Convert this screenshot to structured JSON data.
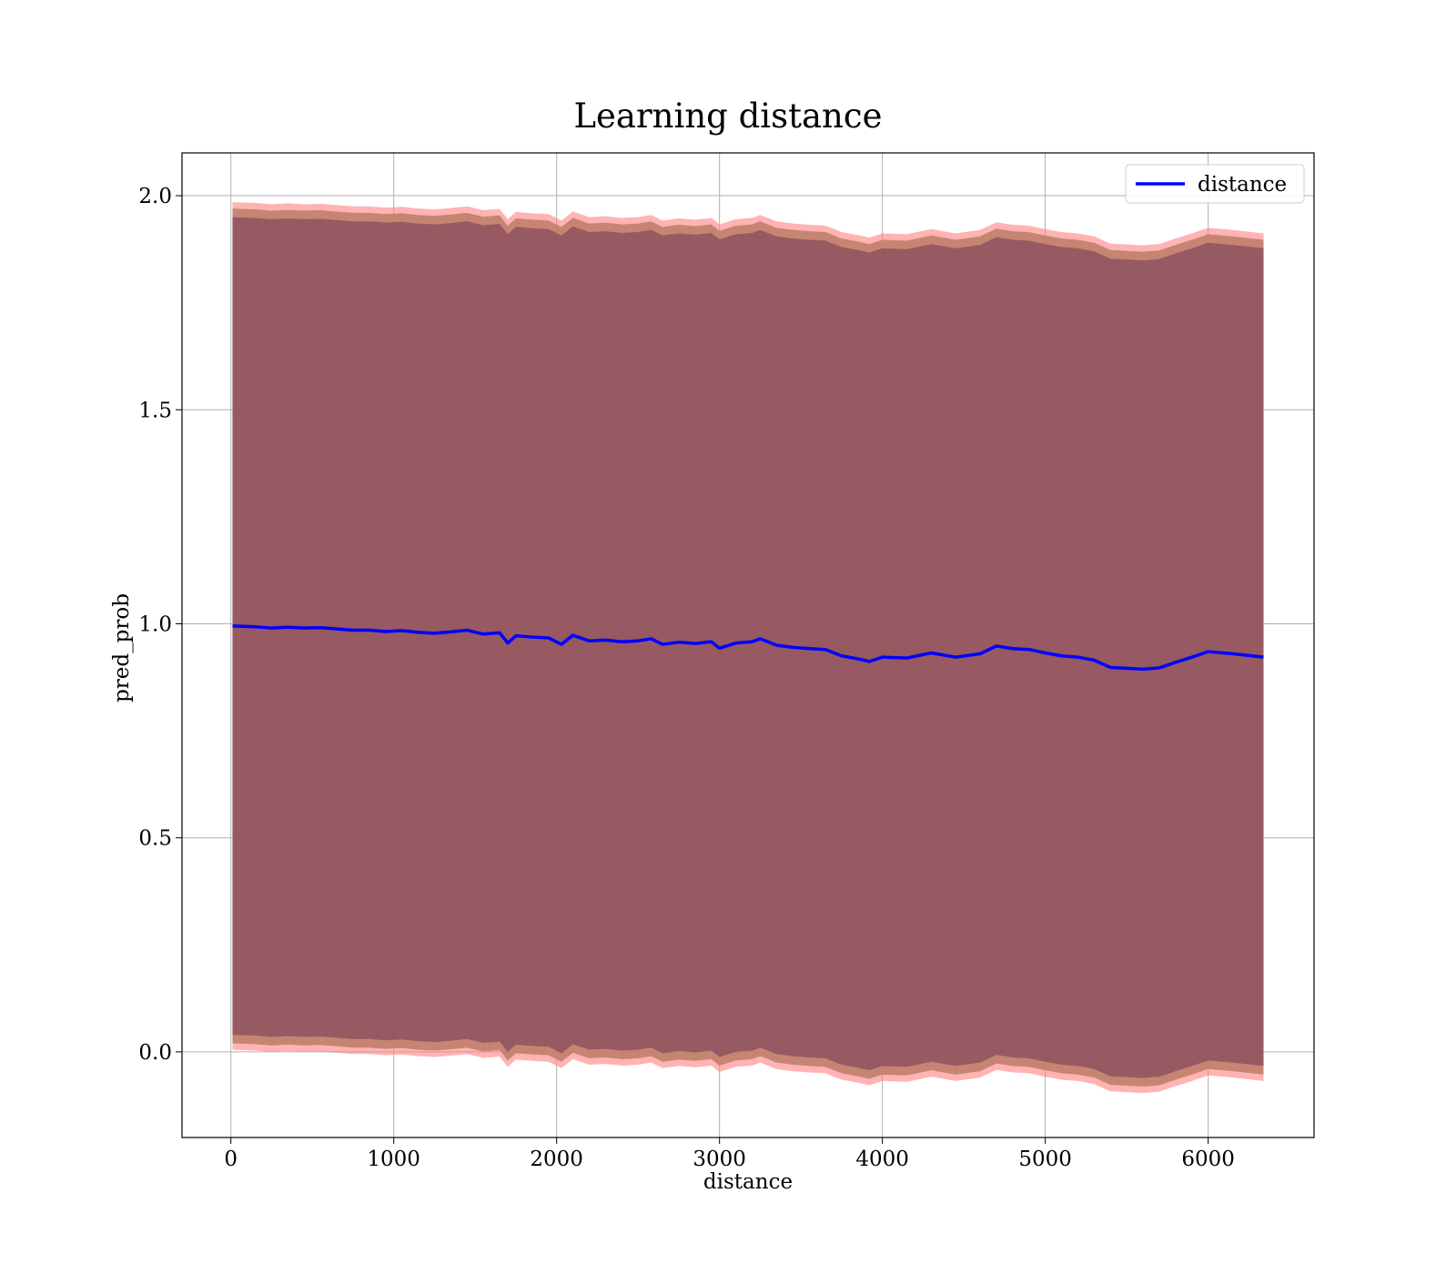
{
  "chart_data": {
    "type": "line",
    "title": "Learning distance",
    "xlabel": "distance",
    "ylabel": "pred_prob",
    "xlim": [
      -300,
      6650
    ],
    "ylim": [
      -0.2,
      2.1
    ],
    "xticks": [
      0,
      1000,
      2000,
      3000,
      4000,
      5000,
      6000
    ],
    "xtick_labels": [
      "0",
      "1000",
      "2000",
      "3000",
      "4000",
      "5000",
      "6000"
    ],
    "yticks": [
      0.0,
      0.5,
      1.0,
      1.5,
      2.0
    ],
    "ytick_labels": [
      "0.0",
      "0.5",
      "1.0",
      "1.5",
      "2.0"
    ],
    "grid": true,
    "legend": {
      "position": "top-right",
      "entries": [
        "distance"
      ]
    },
    "colors": {
      "line": "#0000ff",
      "inner_band": "#8b4d5e",
      "outer_band": "#ff8080",
      "mid_band": "#c0806a"
    },
    "series": [
      {
        "name": "distance",
        "x": [
          10,
          150,
          250,
          350,
          450,
          550,
          650,
          750,
          850,
          950,
          1050,
          1150,
          1250,
          1350,
          1450,
          1550,
          1650,
          1700,
          1750,
          1850,
          1950,
          2030,
          2100,
          2200,
          2300,
          2400,
          2500,
          2580,
          2650,
          2750,
          2850,
          2950,
          3000,
          3100,
          3200,
          3250,
          3350,
          3450,
          3550,
          3650,
          3750,
          3850,
          3920,
          4000,
          4150,
          4300,
          4450,
          4600,
          4700,
          4800,
          4900,
          5000,
          5100,
          5200,
          5300,
          5400,
          5500,
          5600,
          5700,
          5800,
          5900,
          6000,
          6150,
          6340
        ],
        "y": [
          0.995,
          0.993,
          0.99,
          0.992,
          0.99,
          0.991,
          0.988,
          0.985,
          0.985,
          0.982,
          0.984,
          0.98,
          0.978,
          0.981,
          0.985,
          0.976,
          0.979,
          0.955,
          0.972,
          0.969,
          0.967,
          0.952,
          0.973,
          0.96,
          0.962,
          0.958,
          0.96,
          0.965,
          0.952,
          0.957,
          0.954,
          0.958,
          0.943,
          0.955,
          0.958,
          0.965,
          0.95,
          0.945,
          0.942,
          0.94,
          0.925,
          0.918,
          0.912,
          0.922,
          0.92,
          0.932,
          0.922,
          0.93,
          0.948,
          0.942,
          0.94,
          0.932,
          0.925,
          0.922,
          0.915,
          0.898,
          0.896,
          0.894,
          0.897,
          0.91,
          0.922,
          0.935,
          0.93,
          0.922
        ],
        "band_inner": 0.955,
        "band_mid": 0.975,
        "band_outer": 0.99
      }
    ]
  }
}
